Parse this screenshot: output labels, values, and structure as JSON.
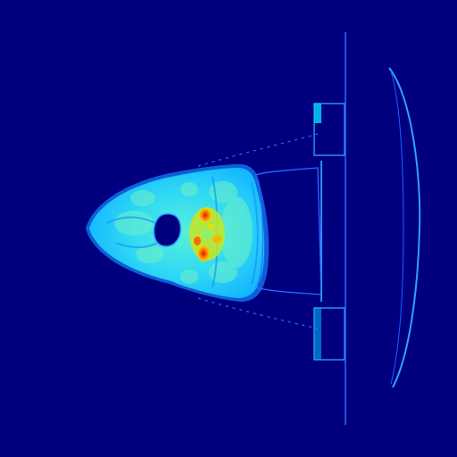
{
  "image": {
    "kind": "axial CT slice, jet colormap",
    "colors": {
      "background": "#00007f",
      "soft_tissue": "#19c8ff",
      "soft_tissue_light": "#3fe6f0",
      "fat": "#1aa6ff",
      "bone_mid": "#d8e000",
      "bone_high": "#ff6a00",
      "bone_peak": "#e01000",
      "air": "#00007f",
      "table": "#2a6cff",
      "table_bright": "#00e0ff"
    }
  }
}
